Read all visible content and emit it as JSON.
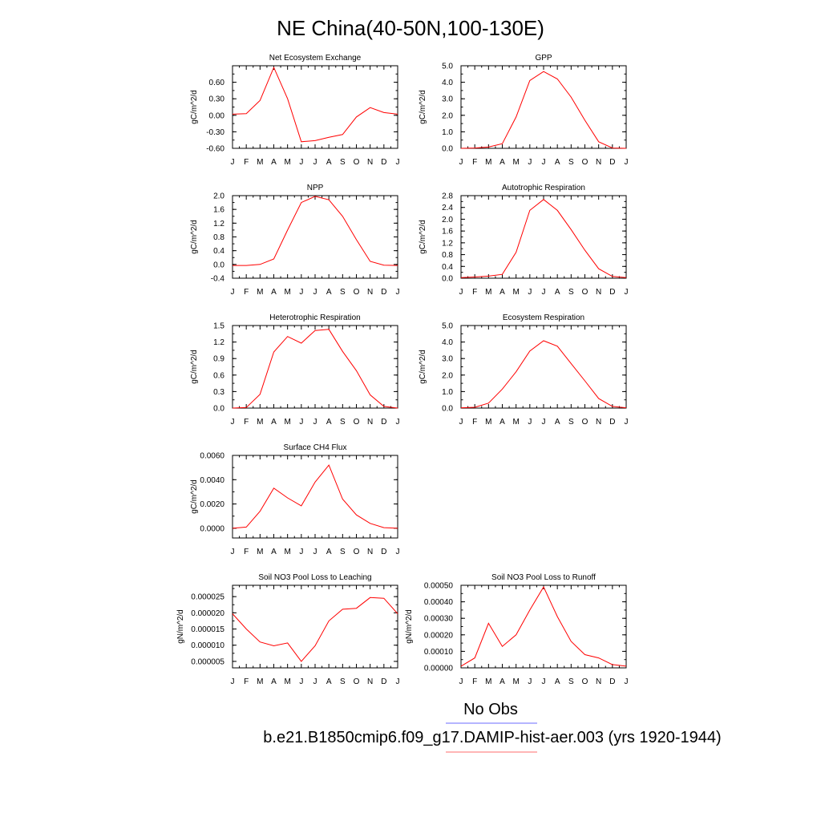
{
  "figure": {
    "title": "NE China(40-50N,100-130E)",
    "legend": [
      {
        "label": "No Obs",
        "color": "#6b6bff"
      },
      {
        "label": "b.e21.B1850cmip6.f09_g17.DAMIP-hist-aer.003 (yrs 1920-1944)",
        "color": "#ff6b6b"
      }
    ],
    "line_color": "#ff0000"
  },
  "chart_data": [
    {
      "type": "line",
      "title": "Net Ecosystem Exchange",
      "ylabel": "gC/m^2/d",
      "categories": [
        "J",
        "F",
        "M",
        "A",
        "M",
        "J",
        "J",
        "A",
        "S",
        "O",
        "N",
        "D",
        "J"
      ],
      "ylim": [
        -0.6,
        0.9
      ],
      "yticks": [
        "-0.60",
        "-0.30",
        "0.00",
        "0.30",
        "0.60"
      ],
      "yticks_values": [
        -0.6,
        -0.3,
        0.0,
        0.3,
        0.6
      ],
      "values": [
        0.02,
        0.03,
        0.27,
        0.87,
        0.3,
        -0.48,
        -0.46,
        -0.4,
        -0.35,
        -0.03,
        0.14,
        0.05,
        0.02
      ]
    },
    {
      "type": "line",
      "title": "GPP",
      "ylabel": "gC/m^2/d",
      "categories": [
        "J",
        "F",
        "M",
        "A",
        "M",
        "J",
        "J",
        "A",
        "S",
        "O",
        "N",
        "D",
        "J"
      ],
      "ylim": [
        0.0,
        5.0
      ],
      "yticks": [
        "0.0",
        "1.0",
        "2.0",
        "3.0",
        "4.0",
        "5.0"
      ],
      "yticks_values": [
        0,
        1,
        2,
        3,
        4,
        5
      ],
      "values": [
        0.0,
        0.02,
        0.08,
        0.28,
        1.9,
        4.1,
        4.65,
        4.2,
        3.1,
        1.7,
        0.4,
        0.02,
        0.0
      ]
    },
    {
      "type": "line",
      "title": "NPP",
      "ylabel": "gC/m^2/d",
      "categories": [
        "J",
        "F",
        "M",
        "A",
        "M",
        "J",
        "J",
        "A",
        "S",
        "O",
        "N",
        "D",
        "J"
      ],
      "ylim": [
        -0.4,
        2.0
      ],
      "yticks": [
        "-0.4",
        "0.0",
        "0.4",
        "0.8",
        "1.2",
        "1.6",
        "2.0"
      ],
      "yticks_values": [
        -0.4,
        0,
        0.4,
        0.8,
        1.2,
        1.6,
        2.0
      ],
      "values": [
        -0.03,
        -0.03,
        0.0,
        0.16,
        1.0,
        1.8,
        1.98,
        1.88,
        1.4,
        0.72,
        0.09,
        -0.02,
        -0.03
      ]
    },
    {
      "type": "line",
      "title": "Autotrophic Respiration",
      "ylabel": "gC/m^2/d",
      "categories": [
        "J",
        "F",
        "M",
        "A",
        "M",
        "J",
        "J",
        "A",
        "S",
        "O",
        "N",
        "D",
        "J"
      ],
      "ylim": [
        0.0,
        2.8
      ],
      "yticks": [
        "0.0",
        "0.4",
        "0.8",
        "1.2",
        "1.6",
        "2.0",
        "2.4",
        "2.8"
      ],
      "yticks_values": [
        0,
        0.4,
        0.8,
        1.2,
        1.6,
        2.0,
        2.4,
        2.8
      ],
      "values": [
        0.02,
        0.04,
        0.07,
        0.13,
        0.88,
        2.3,
        2.67,
        2.3,
        1.65,
        0.95,
        0.32,
        0.06,
        0.02
      ]
    },
    {
      "type": "line",
      "title": "Heterotrophic Respiration",
      "ylabel": "gC/m^2/d",
      "categories": [
        "J",
        "F",
        "M",
        "A",
        "M",
        "J",
        "J",
        "A",
        "S",
        "O",
        "N",
        "D",
        "J"
      ],
      "ylim": [
        0.0,
        1.5
      ],
      "yticks": [
        "0.0",
        "0.3",
        "0.6",
        "0.9",
        "1.2",
        "1.5"
      ],
      "yticks_values": [
        0,
        0.3,
        0.6,
        0.9,
        1.2,
        1.5
      ],
      "values": [
        0.0,
        0.01,
        0.25,
        1.02,
        1.3,
        1.18,
        1.41,
        1.43,
        1.03,
        0.68,
        0.24,
        0.03,
        0.0
      ]
    },
    {
      "type": "line",
      "title": "Ecosystem Respiration",
      "ylabel": "gC/m^2/d",
      "categories": [
        "J",
        "F",
        "M",
        "A",
        "M",
        "J",
        "J",
        "A",
        "S",
        "O",
        "N",
        "D",
        "J"
      ],
      "ylim": [
        0.0,
        5.0
      ],
      "yticks": [
        "0.0",
        "1.0",
        "2.0",
        "3.0",
        "4.0",
        "5.0"
      ],
      "yticks_values": [
        0,
        1,
        2,
        3,
        4,
        5
      ],
      "values": [
        0.02,
        0.05,
        0.3,
        1.15,
        2.2,
        3.45,
        4.08,
        3.75,
        2.7,
        1.65,
        0.58,
        0.1,
        0.02
      ]
    },
    {
      "type": "line",
      "title": "Surface CH4 Flux",
      "ylabel": "gC/m^2/d",
      "categories": [
        "J",
        "F",
        "M",
        "A",
        "M",
        "J",
        "J",
        "A",
        "S",
        "O",
        "N",
        "D",
        "J"
      ],
      "ylim": [
        -0.0008,
        0.006
      ],
      "yticks": [
        "0.0000",
        "0.0020",
        "0.0040",
        "0.0060"
      ],
      "yticks_values": [
        0,
        0.002,
        0.004,
        0.006
      ],
      "values": [
        0.0,
        0.0001,
        0.0014,
        0.0033,
        0.0025,
        0.00185,
        0.0038,
        0.0052,
        0.0024,
        0.0011,
        0.0004,
        5e-05,
        0.0
      ]
    },
    {
      "type": "line",
      "title": "Soil NO3 Pool Loss to Leaching",
      "ylabel": "gN/m^2/d",
      "categories": [
        "J",
        "F",
        "M",
        "A",
        "M",
        "J",
        "J",
        "A",
        "S",
        "O",
        "N",
        "D",
        "J"
      ],
      "ylim": [
        3e-06,
        2.85e-05
      ],
      "yticks": [
        "0.000005",
        "0.000010",
        "0.000015",
        "0.000020",
        "0.000025"
      ],
      "yticks_values": [
        5e-06,
        1e-05,
        1.5e-05,
        2e-05,
        2.5e-05
      ],
      "values": [
        1.97e-05,
        1.5e-05,
        1.1e-05,
        9.8e-06,
        1.07e-05,
        5e-06,
        9.8e-06,
        1.75e-05,
        2.11e-05,
        2.14e-05,
        2.47e-05,
        2.45e-05,
        1.97e-05
      ]
    },
    {
      "type": "line",
      "title": "Soil NO3 Pool Loss to Runoff",
      "ylabel": "gN/m^2/d",
      "categories": [
        "J",
        "F",
        "M",
        "A",
        "M",
        "J",
        "J",
        "A",
        "S",
        "O",
        "N",
        "D",
        "J"
      ],
      "ylim": [
        0.0,
        0.0005
      ],
      "yticks": [
        "0.00000",
        "0.00010",
        "0.00020",
        "0.00030",
        "0.00040",
        "0.00050"
      ],
      "yticks_values": [
        0,
        0.0001,
        0.0002,
        0.0003,
        0.0004,
        0.0005
      ],
      "values": [
        1e-05,
        6e-05,
        0.00027,
        0.00013,
        0.0002,
        0.00035,
        0.00049,
        0.00031,
        0.00016,
        8e-05,
        6e-05,
        2e-05,
        1e-05
      ]
    }
  ]
}
